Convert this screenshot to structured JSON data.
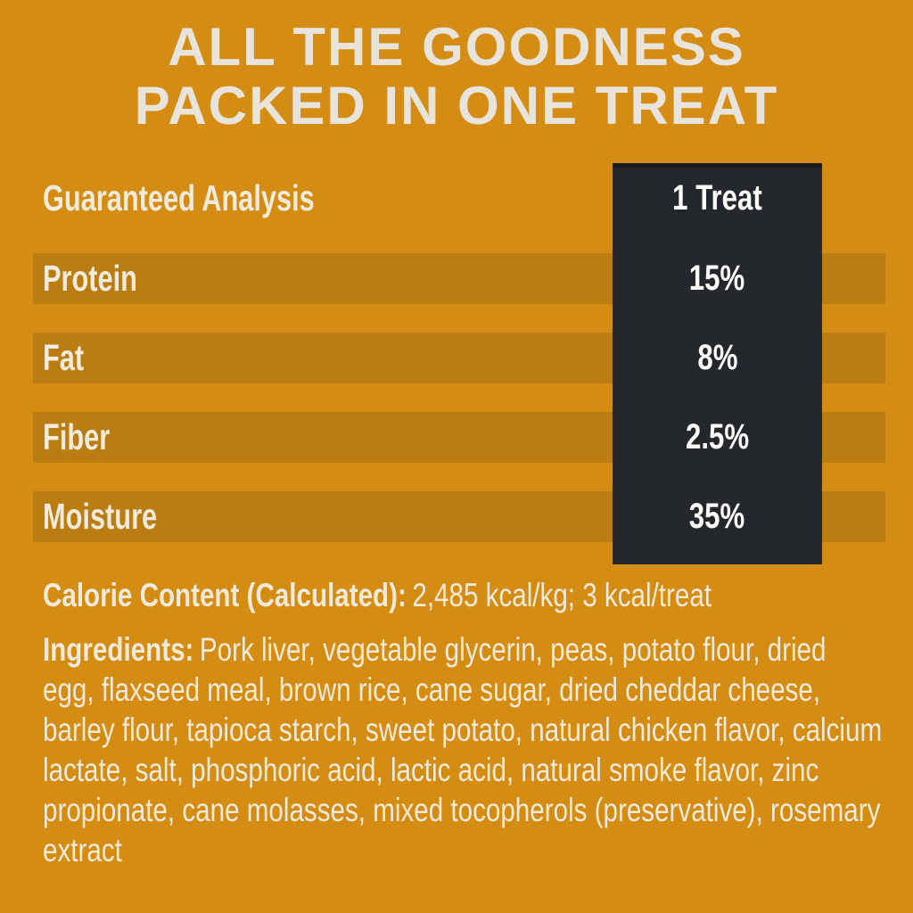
{
  "page": {
    "background_color": "#D48C12",
    "row_band_color": "#BB7C12",
    "value_column_color": "#24272B",
    "text_color": "#F1E9D9"
  },
  "title": {
    "line1": "ALL THE GOODNESS",
    "line2": "PACKED IN ONE TREAT"
  },
  "analysis_table": {
    "header_label": "Guaranteed Analysis",
    "value_column_header": "1 Treat",
    "rows": [
      {
        "label": "Protein",
        "value": "15%"
      },
      {
        "label": "Fat",
        "value": "8%"
      },
      {
        "label": "Fiber",
        "value": "2.5%"
      },
      {
        "label": "Moisture",
        "value": "35%"
      }
    ]
  },
  "calorie_content": {
    "label": "Calorie Content (Calculated):",
    "value": "2,485 kcal/kg; 3 kcal/treat"
  },
  "ingredients": {
    "label": "Ingredients:",
    "text": "Pork liver, vegetable glycerin, peas, potato flour, dried egg, flaxseed meal, brown rice, cane sugar, dried cheddar cheese, barley flour, tapioca starch, sweet potato, natural chicken flavor, calcium lactate, salt, phosphoric acid, lactic acid, natural smoke flavor, zinc propionate, cane molasses, mixed tocopherols (preservative), rosemary extract"
  }
}
